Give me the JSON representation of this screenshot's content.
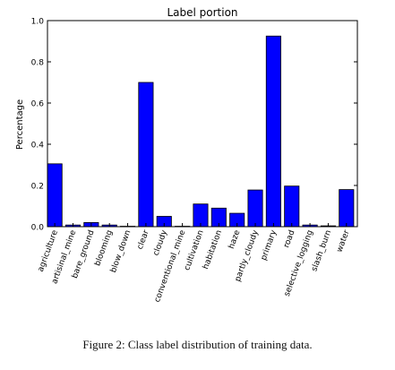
{
  "caption": "Figure 2: Class label distribution of training data.",
  "chart_data": {
    "type": "bar",
    "title": "Label portion",
    "xlabel": "",
    "ylabel": "Percentage",
    "ylim": [
      0,
      1.0
    ],
    "yticks": [
      "0.0",
      "0.2",
      "0.4",
      "0.6",
      "0.8",
      "1.0"
    ],
    "grid": false,
    "bar_color": "#0000ff",
    "categories": [
      "agriculture",
      "artisinal_mine",
      "bare_ground",
      "blooming",
      "blow_down",
      "clear",
      "cloudy",
      "conventional_mine",
      "cultivation",
      "habitation",
      "haze",
      "partly_cloudy",
      "primary",
      "road",
      "selective_logging",
      "slash_burn",
      "water"
    ],
    "values": [
      0.305,
      0.008,
      0.02,
      0.008,
      0.002,
      0.7,
      0.05,
      0.002,
      0.11,
      0.09,
      0.065,
      0.178,
      0.925,
      0.197,
      0.008,
      0.004,
      0.18
    ]
  }
}
